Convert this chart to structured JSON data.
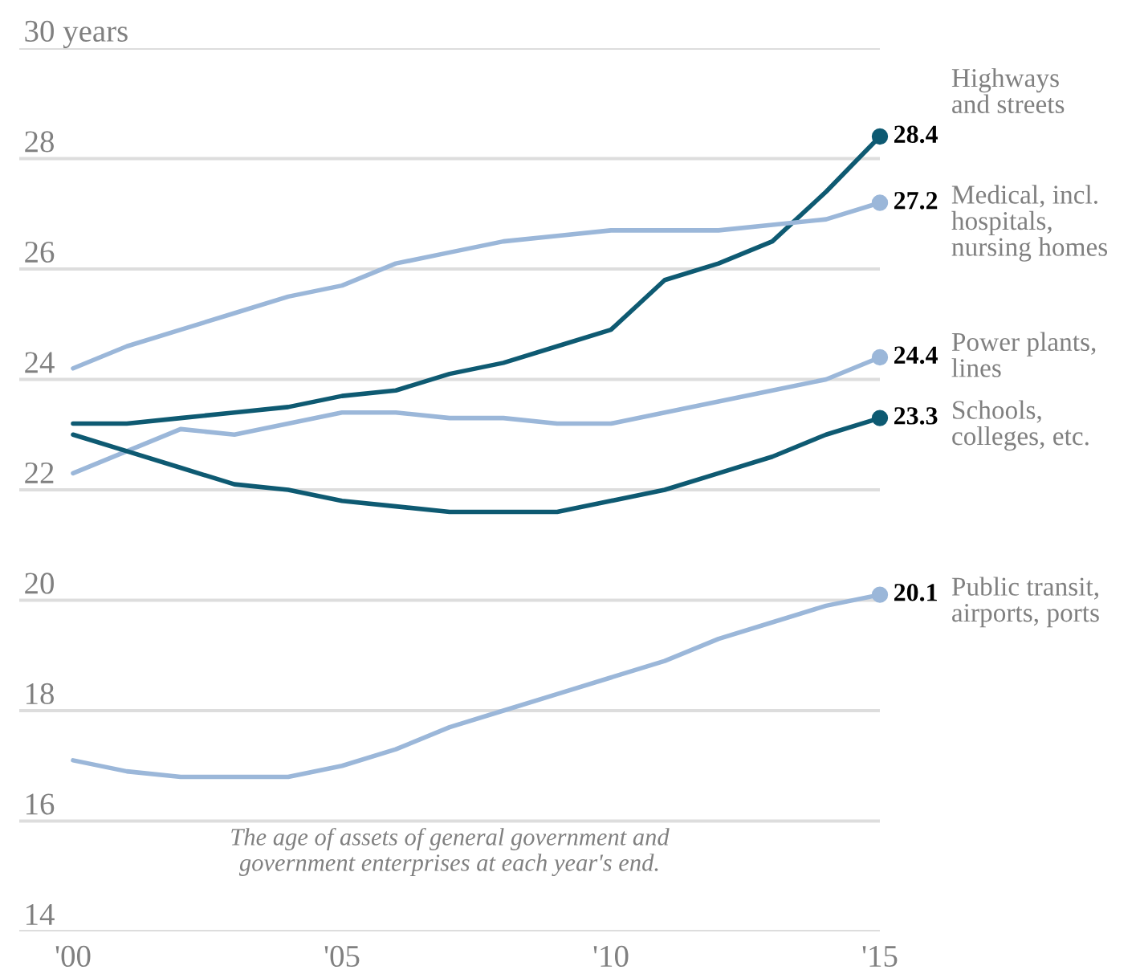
{
  "chart_data": {
    "type": "line",
    "x": [
      2000,
      2001,
      2002,
      2003,
      2004,
      2005,
      2006,
      2007,
      2008,
      2009,
      2010,
      2011,
      2012,
      2013,
      2014,
      2015
    ],
    "series": [
      {
        "name": "Highways\nand streets",
        "color": "#0e5a72",
        "values": [
          23.2,
          23.2,
          23.3,
          23.4,
          23.5,
          23.7,
          23.8,
          24.1,
          24.3,
          24.6,
          24.9,
          25.8,
          26.1,
          26.5,
          27.4,
          28.4
        ],
        "value_labels": [
          null,
          null,
          null,
          null,
          null,
          null,
          null,
          null,
          null,
          null,
          null,
          null,
          null,
          null,
          null,
          "28.4"
        ]
      },
      {
        "name": "Medical, incl.\nhospitals,\nnursing homes",
        "color": "#9bb7d9",
        "values": [
          24.2,
          24.6,
          24.9,
          25.2,
          25.5,
          25.7,
          26.1,
          26.3,
          26.5,
          26.6,
          26.7,
          26.7,
          26.7,
          26.8,
          26.9,
          27.2
        ],
        "value_labels": [
          null,
          null,
          null,
          null,
          null,
          null,
          null,
          null,
          null,
          null,
          null,
          null,
          null,
          null,
          null,
          "27.2"
        ]
      },
      {
        "name": "Power plants,\nlines",
        "color": "#9bb7d9",
        "values": [
          22.3,
          22.7,
          23.1,
          23.0,
          23.2,
          23.4,
          23.4,
          23.3,
          23.3,
          23.2,
          23.2,
          23.4,
          23.6,
          23.8,
          24.0,
          24.4
        ],
        "value_labels": [
          null,
          null,
          null,
          null,
          null,
          null,
          null,
          null,
          null,
          null,
          null,
          null,
          null,
          null,
          null,
          "24.4"
        ]
      },
      {
        "name": "Schools,\ncolleges, etc.",
        "color": "#0e5a72",
        "values": [
          23.0,
          22.7,
          22.4,
          22.1,
          22.0,
          21.8,
          21.7,
          21.6,
          21.6,
          21.6,
          21.8,
          22.0,
          22.3,
          22.6,
          23.0,
          23.3
        ],
        "value_labels": [
          null,
          null,
          null,
          null,
          null,
          null,
          null,
          null,
          null,
          null,
          null,
          null,
          null,
          null,
          null,
          "23.3"
        ]
      },
      {
        "name": "Public transit,\nairports, ports",
        "color": "#9bb7d9",
        "values": [
          17.1,
          16.9,
          16.8,
          16.8,
          16.8,
          17.0,
          17.3,
          17.7,
          18.0,
          18.3,
          18.6,
          18.9,
          19.3,
          19.6,
          19.9,
          20.1
        ],
        "value_labels": [
          null,
          null,
          null,
          null,
          null,
          null,
          null,
          null,
          null,
          null,
          null,
          null,
          null,
          null,
          null,
          "20.1"
        ]
      }
    ],
    "xlim": [
      1999,
      2015
    ],
    "xticks": [
      {
        "value": 2000,
        "label": "'00"
      },
      {
        "value": 2005,
        "label": "'05"
      },
      {
        "value": 2010,
        "label": "'10"
      },
      {
        "value": 2015,
        "label": "'15"
      }
    ],
    "ylim": [
      14,
      30
    ],
    "yticks": [
      14,
      16,
      18,
      20,
      22,
      24,
      26,
      28,
      {
        "value": 30,
        "label": "30 years"
      }
    ],
    "grid": "y",
    "legend": false,
    "annotations": [
      "The age of assets of general government and\ngovernment enterprises at each year's end."
    ]
  }
}
